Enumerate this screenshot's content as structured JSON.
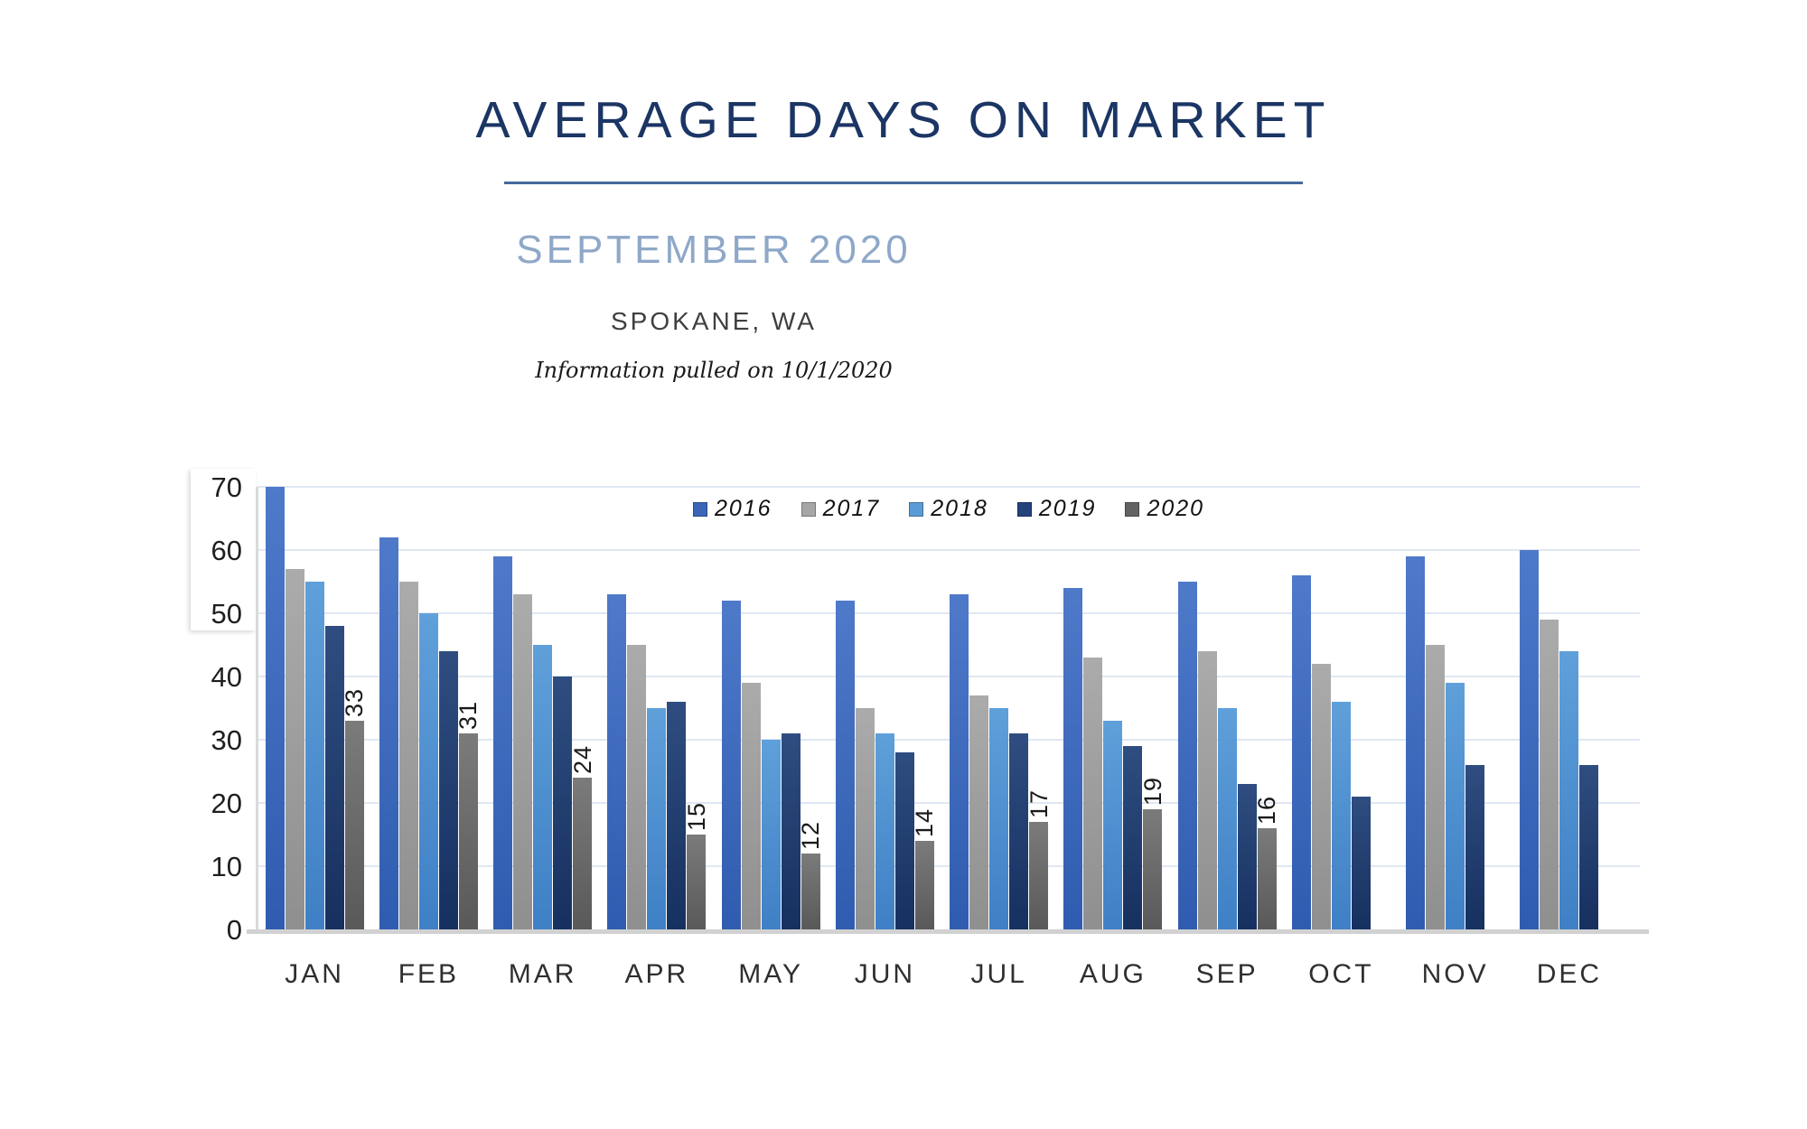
{
  "header": {
    "title": "AVERAGE DAYS ON MARKET",
    "subtitle": "SEPTEMBER 2020",
    "location": "SPOKANE, WA",
    "info_note": "Information pulled on 10/1/2020",
    "title_color": "#1b3564",
    "subtitle_color": "#8fa8c8",
    "rule_color": "#44689d"
  },
  "chart_data": {
    "type": "bar",
    "title": "Average days on market by month, grouped by year",
    "xlabel": "",
    "ylabel": "",
    "ylim": [
      0,
      70
    ],
    "yticks": [
      0,
      10,
      20,
      30,
      40,
      50,
      60,
      70
    ],
    "grid": true,
    "legend_position": "top-center",
    "categories": [
      "JAN",
      "FEB",
      "MAR",
      "APR",
      "MAY",
      "JUN",
      "JUL",
      "AUG",
      "SEP",
      "OCT",
      "NOV",
      "DEC"
    ],
    "series": [
      {
        "name": "2016",
        "legend_color": "#3b66b8",
        "color_top": "#4f79c9",
        "color_bottom": "#2f5cb0",
        "values": [
          70,
          62,
          59,
          53,
          52,
          52,
          53,
          54,
          55,
          56,
          59,
          60
        ],
        "show_labels": false
      },
      {
        "name": "2017",
        "legend_color": "#a6a6a6",
        "color_top": "#ababab",
        "color_bottom": "#8f8f8f",
        "values": [
          57,
          55,
          53,
          45,
          39,
          35,
          37,
          43,
          44,
          42,
          45,
          49
        ],
        "show_labels": false
      },
      {
        "name": "2018",
        "legend_color": "#5b9bd5",
        "color_top": "#5fa0da",
        "color_bottom": "#3f7fc5",
        "values": [
          55,
          50,
          45,
          35,
          30,
          31,
          35,
          33,
          35,
          36,
          39,
          44
        ],
        "show_labels": false
      },
      {
        "name": "2019",
        "legend_color": "#24427c",
        "color_top": "#2f4d80",
        "color_bottom": "#16305f",
        "values": [
          48,
          44,
          40,
          36,
          31,
          28,
          31,
          29,
          23,
          21,
          26,
          26
        ],
        "show_labels": false
      },
      {
        "name": "2020",
        "legend_color": "#636363",
        "color_top": "#7b7b7b",
        "color_bottom": "#595959",
        "values": [
          33,
          31,
          24,
          15,
          12,
          14,
          17,
          19,
          16,
          null,
          null,
          null
        ],
        "show_labels": true
      }
    ]
  }
}
